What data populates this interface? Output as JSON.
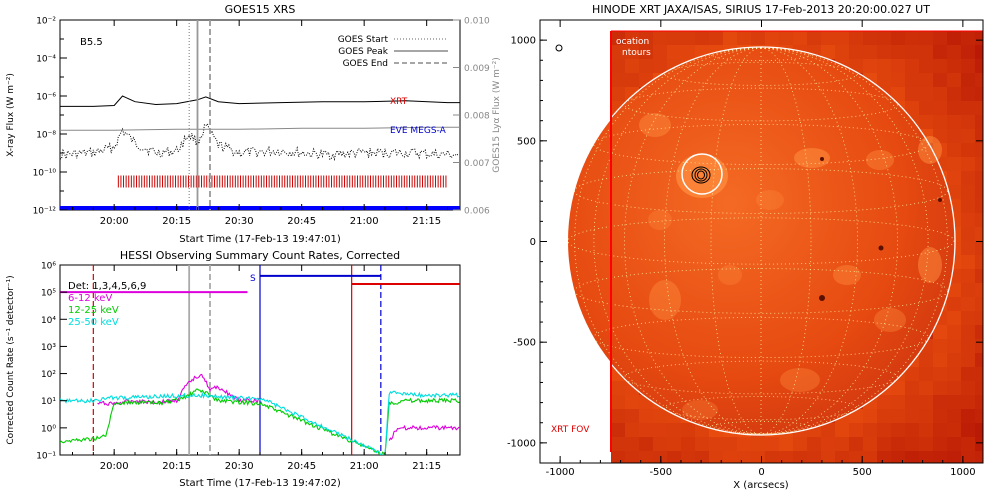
{
  "chart_data": [
    {
      "type": "line",
      "title": "GOES15 XRS",
      "xlabel": "Start Time (17-Feb-13 19:47:01)",
      "ylabel": "X-ray Flux (W m⁻²)",
      "ylabel_right": "GOES15 Lyα Flux (W m⁻²)",
      "xlim": [
        "19:47",
        "21:23"
      ],
      "ylim_exponent": [
        -12,
        -2
      ],
      "y2lim": [
        0.006,
        0.01
      ],
      "y_scale": "log",
      "x_ticks": [
        "20:00",
        "20:15",
        "20:30",
        "20:45",
        "21:00",
        "21:15"
      ],
      "y_ticks": [
        "10⁻²",
        "10⁻⁴",
        "10⁻⁶",
        "10⁻⁸",
        "10⁻¹⁰",
        "10⁻¹²"
      ],
      "y2_ticks": [
        "0.010",
        "0.009",
        "0.008",
        "0.007",
        "0.006"
      ],
      "class_label": "B5.5",
      "legend": [
        "GOES Start",
        "GOES Peak",
        "GOES End"
      ],
      "markers": {
        "goes_start": "20:18",
        "goes_peak": "20:20",
        "goes_end": "20:23"
      },
      "series_labels": [
        {
          "name": "XRT",
          "color": "#dd0000"
        },
        {
          "name": "EVE MEGS-A",
          "color": "#0000cc"
        }
      ],
      "series": [
        {
          "name": "long",
          "color": "#000000",
          "x": [
            "19:47",
            "19:55",
            "20:00",
            "20:02",
            "20:05",
            "20:10",
            "20:15",
            "20:20",
            "20:22",
            "20:25",
            "20:30",
            "20:40",
            "20:50",
            "21:00",
            "21:10",
            "21:20",
            "21:23"
          ],
          "y_exponent": [
            -6.55,
            -6.55,
            -6.5,
            -6.0,
            -6.3,
            -6.45,
            -6.4,
            -6.2,
            -6.05,
            -6.3,
            -6.4,
            -6.35,
            -6.3,
            -6.3,
            -6.25,
            -6.35,
            -6.35
          ]
        },
        {
          "name": "short",
          "color": "#000000",
          "style": "dotted",
          "x": [
            "19:47",
            "19:55",
            "20:00",
            "20:02",
            "20:05",
            "20:10",
            "20:15",
            "20:18",
            "20:20",
            "20:22",
            "20:25",
            "20:30",
            "20:40",
            "20:50",
            "21:00",
            "21:10",
            "21:20",
            "21:23"
          ],
          "y_exponent": [
            -9.1,
            -9.0,
            -8.7,
            -7.8,
            -8.5,
            -9.0,
            -8.9,
            -8.0,
            -8.4,
            -7.6,
            -8.6,
            -9.0,
            -8.9,
            -9.1,
            -9.0,
            -9.0,
            -9.1,
            -9.1
          ]
        },
        {
          "name": "Lyα",
          "color": "#888888",
          "x": [
            "19:47",
            "20:00",
            "20:15",
            "20:30",
            "20:45",
            "21:00",
            "21:15",
            "21:23"
          ],
          "y2": [
            0.00768,
            0.00768,
            0.0077,
            0.0077,
            0.00772,
            0.00772,
            0.00774,
            0.00774
          ]
        }
      ],
      "hatch_band": {
        "color": "#cc0000",
        "x_start": "20:01",
        "x_end": "21:20",
        "y_exponent": -10.5
      },
      "baseline": {
        "color": "#0000ff",
        "y_exponent": -12
      }
    },
    {
      "type": "line",
      "title": "HESSI Observing Summary Count Rates, Corrected",
      "xlabel": "Start Time (17-Feb-13 19:47:02)",
      "ylabel": "Corrected Count Rate (s⁻¹ detector⁻¹)",
      "xlim": [
        "19:47",
        "21:23"
      ],
      "ylim_exponent": [
        -1,
        6
      ],
      "y_scale": "log",
      "x_ticks": [
        "20:00",
        "20:15",
        "20:30",
        "20:45",
        "21:00",
        "21:15"
      ],
      "y_ticks": [
        "10⁶",
        "10⁵",
        "10⁴",
        "10³",
        "10²",
        "10¹",
        "10⁰",
        "10⁻¹"
      ],
      "legend": [
        {
          "name": "Det: 1,3,4,5,6,9",
          "color": "#000000"
        },
        {
          "name": "6-12 keV",
          "color": "#dd00dd"
        },
        {
          "name": "12-25 keV",
          "color": "#00cc00"
        },
        {
          "name": "25-50 keV",
          "color": "#00dddd"
        }
      ],
      "s_label": "S",
      "vlines": [
        {
          "x": "19:55",
          "color": "#dd0000",
          "style": "dashed"
        },
        {
          "x": "20:18",
          "color": "#aaaaaa",
          "style": "solid"
        },
        {
          "x": "20:23",
          "color": "#aaaaaa",
          "style": "dashed"
        },
        {
          "x": "20:35",
          "color": "#0000cc",
          "style": "solid"
        },
        {
          "x": "20:57",
          "color": "#dd0000",
          "style": "solid"
        },
        {
          "x": "21:04",
          "color": "#0000cc",
          "style": "dashed"
        }
      ],
      "state_bars": [
        {
          "color": "#dd00dd",
          "x_start": "19:47",
          "x_end": "20:32",
          "y_exponent": 5.0
        },
        {
          "color": "#0000cc",
          "x_start": "20:35",
          "x_end": "21:04",
          "y_exponent": 5.6
        },
        {
          "color": "#dd0000",
          "x_start": "20:57",
          "x_end": "21:23",
          "y_exponent": 5.3
        }
      ],
      "series": [
        {
          "name": "6-12 keV",
          "color": "#dd00dd",
          "x": [
            "19:56",
            "20:00",
            "20:05",
            "20:10",
            "20:15",
            "20:17",
            "20:19",
            "20:21",
            "20:23",
            "20:25",
            "20:27",
            "20:30",
            "20:34",
            "20:35"
          ],
          "y_exponent": [
            0.9,
            0.9,
            1.0,
            0.95,
            1.0,
            1.5,
            1.8,
            2.0,
            1.4,
            1.5,
            1.3,
            1.0,
            1.0,
            1.0
          ]
        },
        {
          "name": "12-25 keV",
          "color": "#00cc00",
          "x": [
            "19:47",
            "19:55",
            "19:58",
            "20:00",
            "20:05",
            "20:10",
            "20:15",
            "20:18",
            "20:20",
            "20:22",
            "20:25",
            "20:30",
            "20:35",
            "21:05",
            "21:06",
            "21:10",
            "21:23"
          ],
          "y_exponent": [
            -0.5,
            -0.4,
            -0.3,
            0.9,
            0.95,
            0.9,
            1.0,
            1.2,
            1.4,
            1.3,
            1.0,
            0.95,
            0.9,
            -1.0,
            0.9,
            1.0,
            1.0
          ]
        },
        {
          "name": "25-50 keV",
          "color": "#00dddd",
          "x": [
            "19:47",
            "19:55",
            "19:58",
            "20:00",
            "20:10",
            "20:20",
            "20:30",
            "20:35",
            "21:05",
            "21:06",
            "21:15",
            "21:23"
          ],
          "y_exponent": [
            1.0,
            1.0,
            1.1,
            1.1,
            1.15,
            1.2,
            1.1,
            1.1,
            -1.0,
            1.3,
            1.2,
            1.2
          ]
        },
        {
          "name": "6-12 keV late",
          "color": "#dd00dd",
          "x": [
            "21:06",
            "21:08",
            "21:14",
            "21:20",
            "21:23"
          ],
          "y_exponent": [
            -0.5,
            0.0,
            0.0,
            0.0,
            0.0
          ]
        }
      ]
    },
    {
      "type": "image",
      "title": "HINODE XRT JAXA/ISAS, SIRIUS 17-Feb-2013 20:20:00.027 UT",
      "xlabel": "X (arcsecs)",
      "xlim": [
        -1100,
        1100
      ],
      "ylim": [
        -1100,
        1100
      ],
      "x_ticks": [
        -1000,
        -500,
        0,
        500,
        1000
      ],
      "y_ticks": [
        1000,
        500,
        0,
        -500,
        -1000
      ],
      "fov_label": "XRT FOV",
      "legend_fragments": [
        "ocation",
        "ntours"
      ],
      "colors": {
        "disk_dark": "#c02000",
        "disk_mid": "#e64a10",
        "disk_light": "#ff9040",
        "fov": "#ff0000",
        "grid": "#ffffaa"
      }
    }
  ]
}
